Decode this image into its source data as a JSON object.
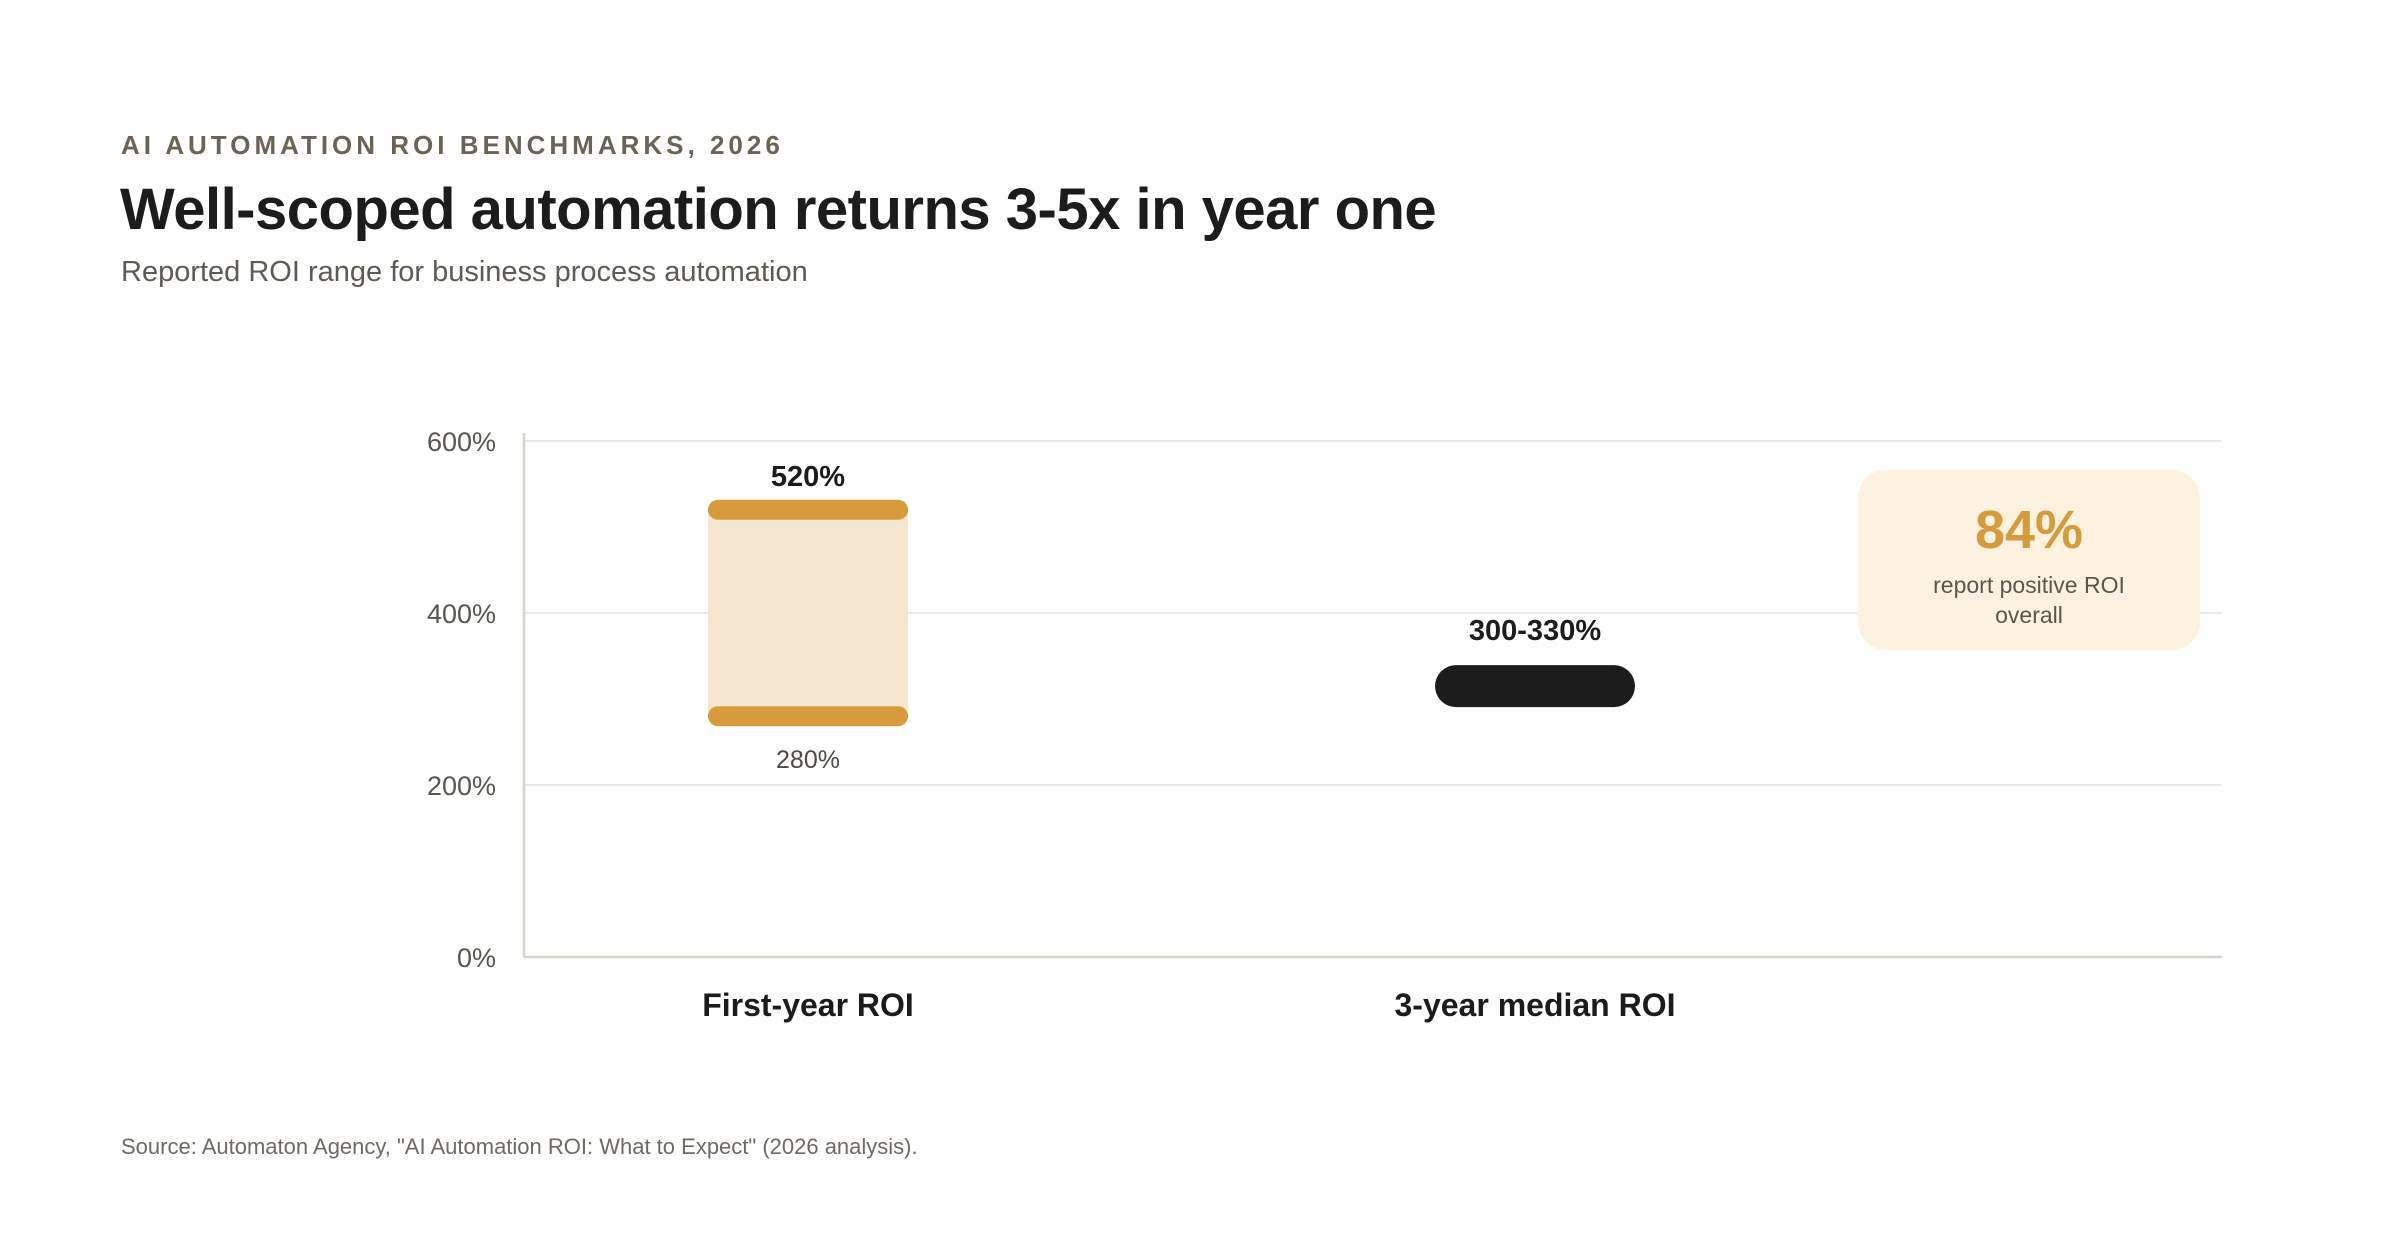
{
  "header": {
    "eyebrow": "AI AUTOMATION ROI BENCHMARKS, 2026",
    "title": "Well-scoped automation returns 3-5x in year one",
    "subtitle": "Reported ROI range for business process automation"
  },
  "callout": {
    "value": "84%",
    "text": "report positive ROI overall"
  },
  "source": "Source: Automaton Agency, \"AI Automation ROI: What to Expect\" (2026 analysis).",
  "chart_data": {
    "type": "range-bar",
    "categories": [
      "First-year ROI",
      "3-year median ROI"
    ],
    "series": [
      {
        "category": "First-year ROI",
        "low": 280,
        "high": 520,
        "low_label": "280%",
        "high_label": "520%"
      },
      {
        "category": "3-year median ROI",
        "low": 300,
        "high": 330,
        "range_label": "300-330%"
      }
    ],
    "yticks": [
      "0%",
      "200%",
      "400%",
      "600%"
    ],
    "ylim": [
      0,
      600
    ],
    "grid": true,
    "colors": {
      "first_year_band": "#f5e7cf",
      "first_year_cap": "#d69b3c",
      "median_bar": "#1c1c1c",
      "grid": "#e6e3de",
      "axis": "#d8d4cc"
    }
  }
}
